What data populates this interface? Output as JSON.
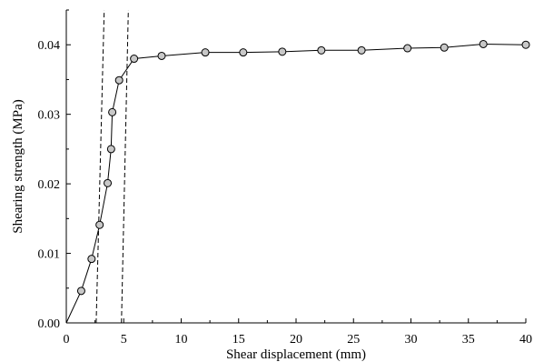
{
  "chart_data": {
    "type": "line",
    "title": "",
    "xlabel": "Shear displacement (mm)",
    "ylabel": "Shearing strength (MPa)",
    "xlim": [
      0,
      40
    ],
    "ylim": [
      0,
      0.045
    ],
    "xticks": [
      "0",
      "5",
      "10",
      "15",
      "20",
      "25",
      "30",
      "35",
      "40"
    ],
    "yticks": [
      "0.00",
      "0.01",
      "0.02",
      "0.03",
      "0.04"
    ],
    "grid": false,
    "legend": "none",
    "series": [
      {
        "marker": "circle",
        "color": "#000000",
        "marker_fill": "#c8c8c8",
        "x": [
          0,
          1.3,
          2.2,
          2.9,
          3.6,
          3.9,
          4.0,
          4.6,
          5.9,
          8.3,
          12.1,
          15.4,
          18.8,
          22.2,
          25.7,
          29.7,
          32.9,
          36.3,
          40.0
        ],
        "y": [
          0.0,
          0.0046,
          0.0092,
          0.0141,
          0.0201,
          0.025,
          0.0303,
          0.0349,
          0.038,
          0.0384,
          0.0389,
          0.0389,
          0.039,
          0.0392,
          0.0392,
          0.0395,
          0.0396,
          0.0401,
          0.04
        ]
      }
    ],
    "reference_lines": [
      {
        "style": "dashed",
        "color": "#000000",
        "x": [
          2.6,
          3.3
        ],
        "y": [
          0.0,
          0.045
        ]
      },
      {
        "style": "dashed",
        "color": "#000000",
        "x": [
          4.8,
          5.4
        ],
        "y": [
          0.0,
          0.045
        ]
      }
    ]
  }
}
